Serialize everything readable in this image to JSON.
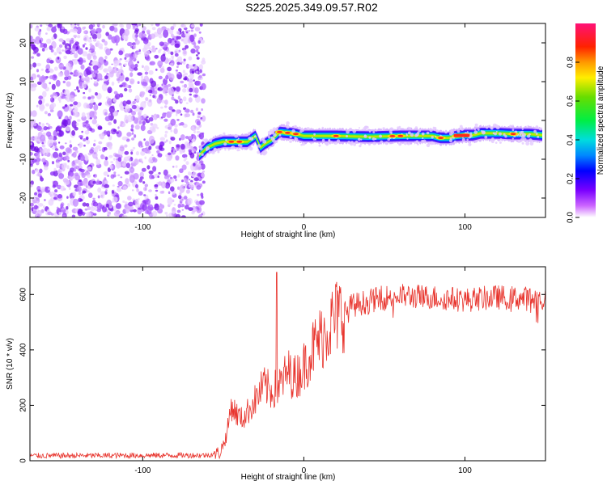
{
  "title": "S225.2025.349.09.57.R02",
  "chart_data": [
    {
      "type": "heatmap",
      "xlabel": "Height of straight line (km)",
      "ylabel": "Frequency (Hz)",
      "xlim": [
        -170,
        150
      ],
      "ylim": [
        -25,
        25
      ],
      "xticks": [
        -100,
        0,
        100
      ],
      "yticks": [
        -20,
        -10,
        0,
        10,
        20
      ],
      "noise_region_x": [
        -170,
        -62
      ],
      "ridge": {
        "x": [
          -65,
          -60,
          -55,
          -50,
          -45,
          -40,
          -35,
          -30,
          -27,
          -24,
          -20,
          -15,
          -10,
          -5,
          0,
          20,
          40,
          60,
          80,
          85,
          90,
          95,
          100,
          105,
          110,
          120,
          130,
          140,
          148
        ],
        "freq": [
          -9,
          -7,
          -6,
          -5.5,
          -5.5,
          -5.5,
          -5.5,
          -4,
          -7,
          -6,
          -5,
          -3,
          -3.2,
          -3.5,
          -4,
          -4,
          -4.2,
          -4,
          -4,
          -4.5,
          -4.5,
          -4,
          -3.8,
          -3.8,
          -3.3,
          -3.3,
          -3.5,
          -3.5,
          -3.8
        ],
        "peak_x": [
          -45,
          -40,
          -15,
          -10,
          -5,
          20,
          55,
          60,
          85,
          95,
          100,
          130
        ]
      },
      "colorbar": {
        "label": "Normalized spectral amplitude",
        "range": [
          0.0,
          1.0
        ],
        "ticks": [
          "0.0",
          "0.2",
          "0.4",
          "0.6",
          "0.8"
        ]
      }
    },
    {
      "type": "line",
      "xlabel": "Height of straight line (km)",
      "ylabel": "SNR (10 * v/v)",
      "xlim": [
        -170,
        150
      ],
      "ylim": [
        0,
        700
      ],
      "xticks": [
        -100,
        0,
        100
      ],
      "yticks": [
        0,
        200,
        400,
        600
      ],
      "color": "#e8352e",
      "envelope": {
        "x": [
          -170,
          -60,
          -52,
          -48,
          -45,
          -42,
          -38,
          -30,
          -25,
          -20,
          -15,
          -10,
          -5,
          0,
          5,
          10,
          15,
          20,
          25,
          30,
          40,
          50,
          60,
          80,
          100,
          120,
          140,
          150
        ],
        "y": [
          18,
          20,
          30,
          90,
          200,
          170,
          150,
          220,
          270,
          250,
          270,
          320,
          300,
          340,
          400,
          440,
          480,
          520,
          540,
          560,
          575,
          590,
          595,
          590,
          580,
          590,
          585,
          580
        ]
      },
      "spike": {
        "x": -17,
        "y": 680
      }
    }
  ]
}
